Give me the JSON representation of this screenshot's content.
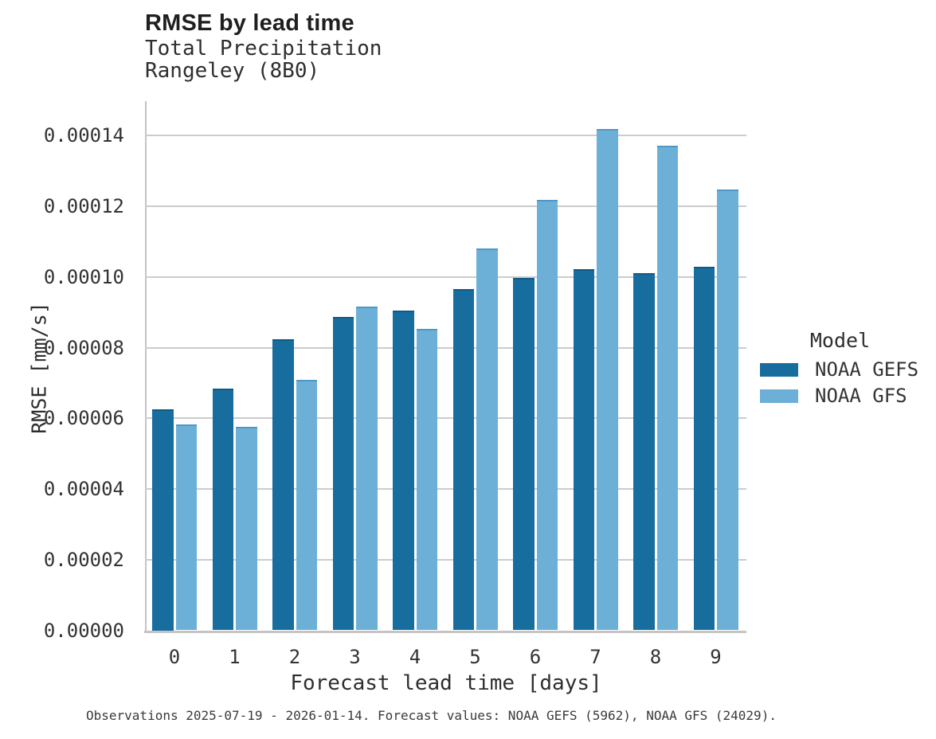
{
  "title": "RMSE by lead time",
  "subtitle_lines": [
    "Total Precipitation",
    "Rangeley (8B0)"
  ],
  "caption": "Observations 2025-07-19 - 2026-01-14. Forecast values: NOAA GEFS (5962), NOAA GFS (24029).",
  "chart_data": {
    "type": "bar",
    "title": "RMSE by lead time",
    "subtitle": "Total Precipitation / Rangeley (8B0)",
    "xlabel": "Forecast lead time [days]",
    "ylabel": "RMSE [mm/s]",
    "categories": [
      "0",
      "1",
      "2",
      "3",
      "4",
      "5",
      "6",
      "7",
      "8",
      "9"
    ],
    "series": [
      {
        "name": "NOAA GEFS",
        "color": "#176d9e",
        "edge_color": "#115a85",
        "values": [
          6.25e-05,
          6.85e-05,
          8.23e-05,
          8.86e-05,
          9.05e-05,
          9.65e-05,
          9.97e-05,
          0.0001023,
          0.0001012,
          0.000103
        ]
      },
      {
        "name": "NOAA GFS",
        "color": "#6cb0d8",
        "edge_color": "#4e97c6",
        "values": [
          5.82e-05,
          5.76e-05,
          7.08e-05,
          9.16e-05,
          8.53e-05,
          0.000108,
          0.0001219,
          0.0001418,
          0.0001372,
          0.0001247
        ]
      }
    ],
    "y_tick_labels": [
      "0.00000",
      "0.00002",
      "0.00004",
      "0.00006",
      "0.00008",
      "0.00010",
      "0.00012",
      "0.00014"
    ],
    "ylim": [
      0,
      0.00015
    ],
    "grid": "horizontal",
    "legend_position": "right",
    "legend_title": "Model"
  },
  "colors": {
    "background": "#ffffff",
    "gridline": "#cccccc",
    "axis_line": "#c4c4c4",
    "text": "#2e2e2e"
  }
}
